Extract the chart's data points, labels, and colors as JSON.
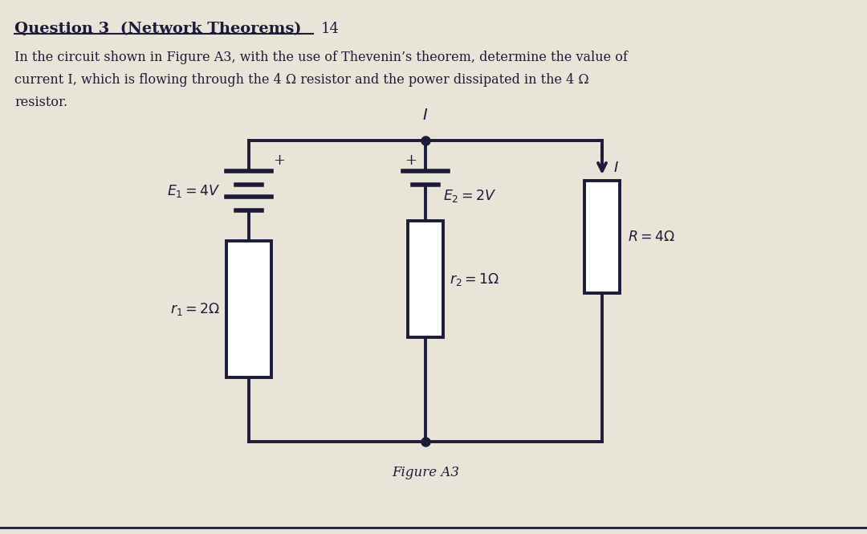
{
  "title": "Question 3  (Network Theorems)",
  "subtitle_line1": "In the circuit shown in Figure A3, with the use of Thevenin’s theorem, determine the value of",
  "subtitle_line2": "current I, which is flowing through the 4 Ω resistor and the power dissipated in the 4 Ω",
  "subtitle_line3": "resistor.",
  "figure_label": "Figure A3",
  "bg_color": "#cac8d8",
  "page_color": "#e8e4d8",
  "line_color": "#1c1c3a",
  "text_color": "#1c1c3a",
  "E1_label": "$E_1 = 4V$",
  "E2_label": "$E_2 = 2V$",
  "r1_label": "$r_1 = 2\\Omega$",
  "r2_label": "$r_2 = 1\\Omega$",
  "R_label": "$R = 4\\Omega$",
  "I_label_arrow": "$I$",
  "I_label_top": "$I$",
  "plus_sign": "+",
  "mark_14": "14"
}
